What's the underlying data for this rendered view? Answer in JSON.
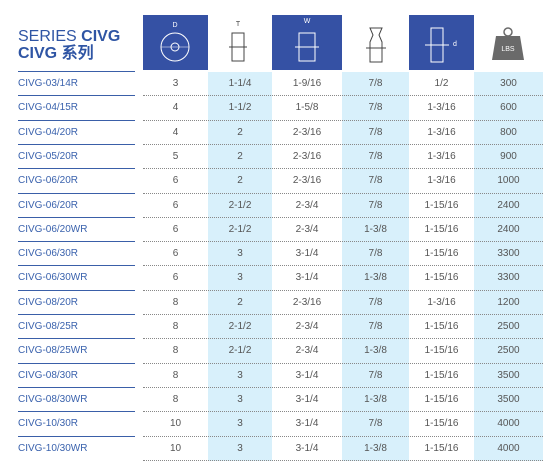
{
  "header": {
    "series": "SERIES",
    "title": "CIVG",
    "subtitle": "CIVG 系列",
    "icons": [
      "D",
      "T",
      "W",
      "d",
      "LBS"
    ]
  },
  "table": {
    "rows": [
      [
        "CIVG-03/14R",
        "3",
        "1-1/4",
        "1-9/16",
        "7/8",
        "1/2",
        "300"
      ],
      [
        "CIVG-04/15R",
        "4",
        "1-1/2",
        "1-5/8",
        "7/8",
        "1-3/16",
        "600"
      ],
      [
        "CIVG-04/20R",
        "4",
        "2",
        "2-3/16",
        "7/8",
        "1-3/16",
        "800"
      ],
      [
        "CIVG-05/20R",
        "5",
        "2",
        "2-3/16",
        "7/8",
        "1-3/16",
        "900"
      ],
      [
        "CIVG-06/20R",
        "6",
        "2",
        "2-3/16",
        "7/8",
        "1-3/16",
        "1000"
      ],
      [
        "CIVG-06/20R",
        "6",
        "2-1/2",
        "2-3/4",
        "7/8",
        "1-15/16",
        "2400"
      ],
      [
        "CIVG-06/20WR",
        "6",
        "2-1/2",
        "2-3/4",
        "1-3/8",
        "1-15/16",
        "2400"
      ],
      [
        "CIVG-06/30R",
        "6",
        "3",
        "3-1/4",
        "7/8",
        "1-15/16",
        "3300"
      ],
      [
        "CIVG-06/30WR",
        "6",
        "3",
        "3-1/4",
        "1-3/8",
        "1-15/16",
        "3300"
      ],
      [
        "CIVG-08/20R",
        "8",
        "2",
        "2-3/16",
        "7/8",
        "1-3/16",
        "1200"
      ],
      [
        "CIVG-08/25R",
        "8",
        "2-1/2",
        "2-3/4",
        "7/8",
        "1-15/16",
        "2500"
      ],
      [
        "CIVG-08/25WR",
        "8",
        "2-1/2",
        "2-3/4",
        "1-3/8",
        "1-15/16",
        "2500"
      ],
      [
        "CIVG-08/30R",
        "8",
        "3",
        "3-1/4",
        "7/8",
        "1-15/16",
        "3500"
      ],
      [
        "CIVG-08/30WR",
        "8",
        "3",
        "3-1/4",
        "1-3/8",
        "1-15/16",
        "3500"
      ],
      [
        "CIVG-10/30R",
        "10",
        "3",
        "3-1/4",
        "7/8",
        "1-15/16",
        "4000"
      ],
      [
        "CIVG-10/30WR",
        "10",
        "3",
        "3-1/4",
        "1-3/8",
        "1-15/16",
        "4000"
      ]
    ]
  }
}
